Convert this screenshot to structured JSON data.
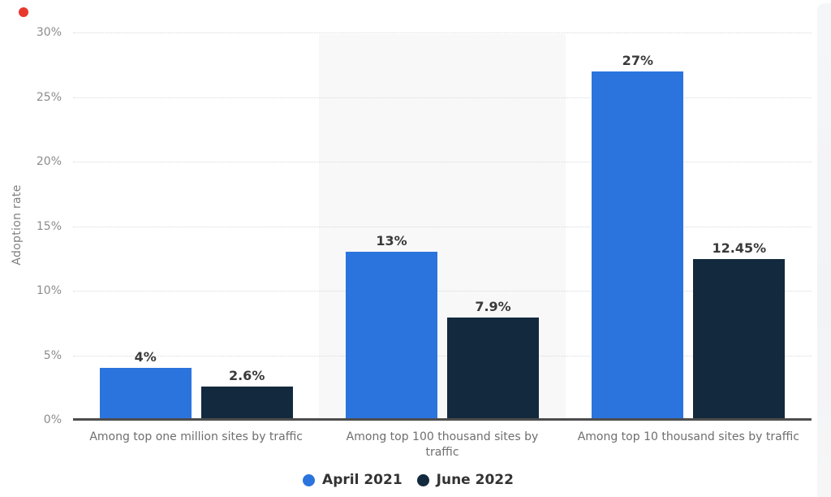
{
  "chart_data": {
    "type": "bar",
    "title": "",
    "xlabel": "",
    "ylabel": "Adoption rate",
    "ylim": [
      0,
      30
    ],
    "grid": "horizontal dotted",
    "legend_position": "bottom-center",
    "categories": [
      "Among top one million sites by traffic",
      "Among top 100 thousand sites by traffic",
      "Among top 10 thousand sites by traffic"
    ],
    "category_label_lines": [
      [
        "Among top one million sites by traffic"
      ],
      [
        "Among top 100 thousand sites by",
        "traffic"
      ],
      [
        "Among top 10 thousand sites by traffic"
      ]
    ],
    "yticks": [
      {
        "value": 0,
        "label": "0%"
      },
      {
        "value": 5,
        "label": "5%"
      },
      {
        "value": 10,
        "label": "10%"
      },
      {
        "value": 15,
        "label": "15%"
      },
      {
        "value": 20,
        "label": "20%"
      },
      {
        "value": 25,
        "label": "25%"
      },
      {
        "value": 30,
        "label": "30%"
      }
    ],
    "series": [
      {
        "name": "April 2021",
        "color": "#2b74de",
        "values": [
          4,
          13,
          27
        ],
        "value_labels": [
          "4%",
          "13%",
          "27%"
        ]
      },
      {
        "name": "June 2022",
        "color": "#12293e",
        "values": [
          2.6,
          7.9,
          12.45
        ],
        "value_labels": [
          "2.6%",
          "7.9%",
          "12.45%"
        ]
      }
    ],
    "background_band": {
      "category_index": 1,
      "color": "#f8f8f8"
    }
  },
  "colors": {
    "grid": "#d9d9d9",
    "axis_line": "#4d4d4d",
    "tick_label": "#8c8c8c",
    "category_label": "#6e6e6e",
    "value_label": "#3a3a3a",
    "legend_text": "#333333",
    "recording_dot": "#e8382e"
  }
}
